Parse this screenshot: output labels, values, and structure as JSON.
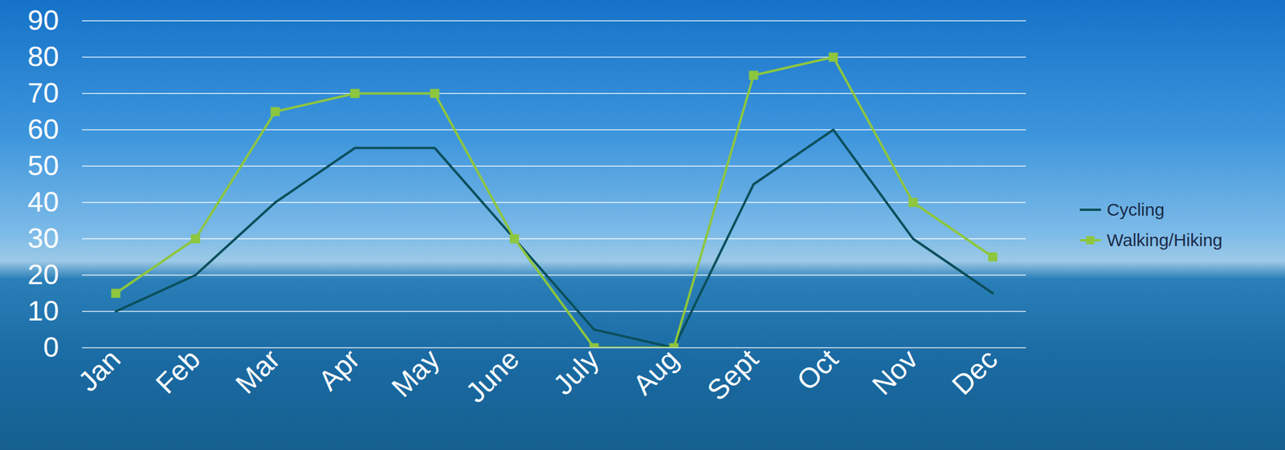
{
  "chart_data": {
    "type": "line",
    "categories": [
      "Jan",
      "Feb",
      "Mar",
      "Apr",
      "May",
      "June",
      "July",
      "Aug",
      "Sept",
      "Oct",
      "Nov",
      "Dec"
    ],
    "series": [
      {
        "name": "Cycling",
        "color": "#0b4f5c",
        "values": [
          10,
          20,
          40,
          55,
          55,
          30,
          5,
          0,
          45,
          60,
          30,
          15
        ]
      },
      {
        "name": "Walking/Hiking",
        "color": "#8dc63f",
        "marker": "square",
        "values": [
          15,
          30,
          65,
          70,
          70,
          30,
          0,
          0,
          75,
          80,
          40,
          25
        ]
      }
    ],
    "ylim": [
      0,
      90
    ],
    "yticks": [
      0,
      10,
      20,
      30,
      40,
      50,
      60,
      70,
      80,
      90
    ],
    "grid": true,
    "legend": "right"
  }
}
